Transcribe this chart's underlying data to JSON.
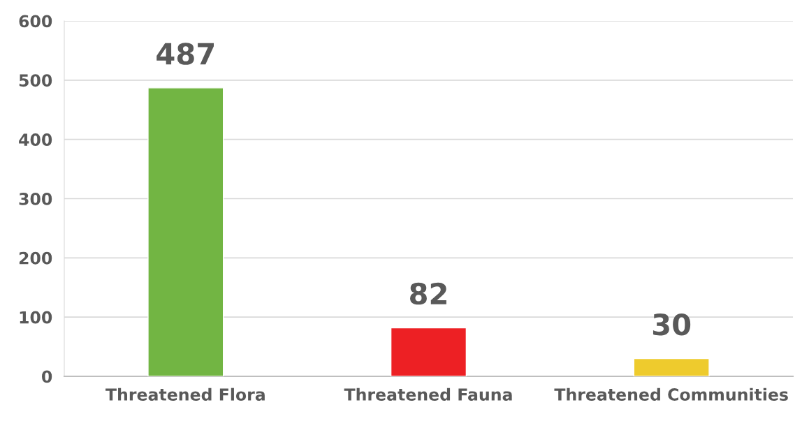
{
  "chart_data": {
    "type": "bar",
    "categories": [
      "Threatened Flora",
      "Threatened Fauna",
      "Threatened Communities"
    ],
    "values": [
      487,
      82,
      30
    ],
    "colors": [
      "#72b543",
      "#ed2024",
      "#eecb2d"
    ],
    "ylim": [
      0,
      600
    ],
    "yticks": [
      0,
      100,
      200,
      300,
      400,
      500,
      600
    ],
    "grid": "y",
    "data_labels": true,
    "legend": false
  }
}
